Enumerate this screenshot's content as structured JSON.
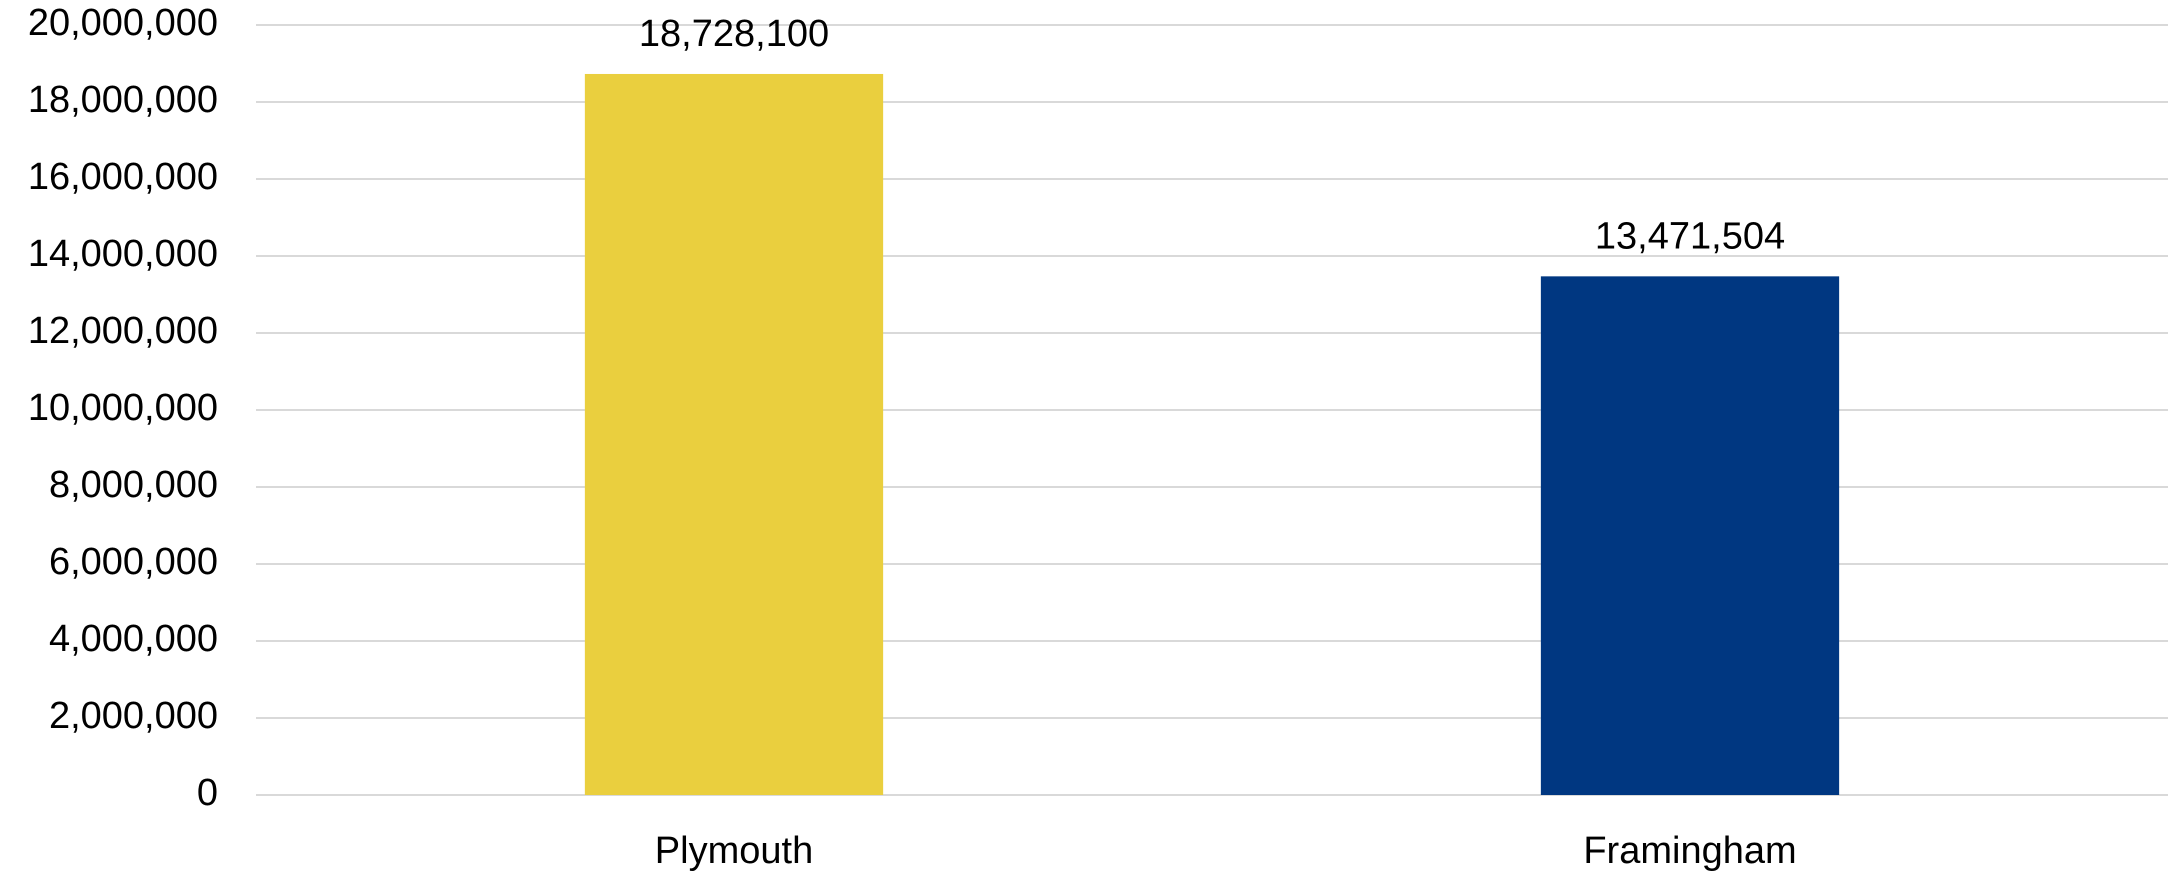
{
  "chart_data": {
    "type": "bar",
    "categories": [
      "Plymouth",
      "Framingham"
    ],
    "values": [
      18728100,
      13471504
    ],
    "value_labels": [
      "18,728,100",
      "13,471,504"
    ],
    "colors": [
      "#eacf3e",
      "#003781"
    ],
    "ylim": [
      0,
      20000000
    ],
    "yticks": [
      0,
      {
        "value": 2000000,
        "label": "2,000,000"
      },
      {
        "value": 4000000,
        "label": "4,000,000"
      },
      {
        "value": 6000000,
        "label": "6,000,000"
      },
      {
        "value": 8000000,
        "label": "8,000,000"
      },
      {
        "value": 10000000,
        "label": "10,000,000"
      },
      {
        "value": 12000000,
        "label": "12,000,000"
      },
      {
        "value": 14000000,
        "label": "14,000,000"
      },
      {
        "value": 16000000,
        "label": "16,000,000"
      },
      {
        "value": 18000000,
        "label": "18,000,000"
      },
      {
        "value": 20000000,
        "label": "20,000,000"
      }
    ],
    "grid": true
  }
}
